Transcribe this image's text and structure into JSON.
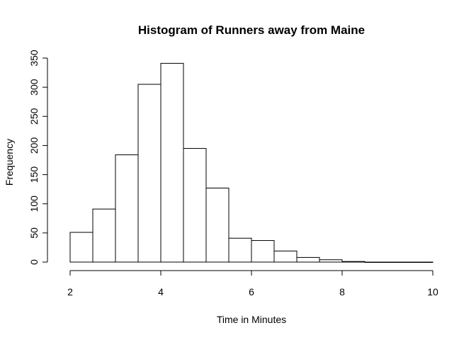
{
  "chart_data": {
    "type": "bar",
    "subtype": "histogram",
    "title": "Histogram of Runners away from Maine",
    "xlabel": "Time in Minutes",
    "ylabel": "Frequency",
    "bins": [
      {
        "x0": 2.0,
        "x1": 2.5,
        "count": 51
      },
      {
        "x0": 2.5,
        "x1": 3.0,
        "count": 91
      },
      {
        "x0": 3.0,
        "x1": 3.5,
        "count": 184
      },
      {
        "x0": 3.5,
        "x1": 4.0,
        "count": 305
      },
      {
        "x0": 4.0,
        "x1": 4.5,
        "count": 341
      },
      {
        "x0": 4.5,
        "x1": 5.0,
        "count": 195
      },
      {
        "x0": 5.0,
        "x1": 5.5,
        "count": 127
      },
      {
        "x0": 5.5,
        "x1": 6.0,
        "count": 41
      },
      {
        "x0": 6.0,
        "x1": 6.5,
        "count": 37
      },
      {
        "x0": 6.5,
        "x1": 7.0,
        "count": 19
      },
      {
        "x0": 7.0,
        "x1": 7.5,
        "count": 8
      },
      {
        "x0": 7.5,
        "x1": 8.0,
        "count": 4
      },
      {
        "x0": 8.0,
        "x1": 8.5,
        "count": 1
      },
      {
        "x0": 8.5,
        "x1": 9.0,
        "count": 0
      },
      {
        "x0": 9.0,
        "x1": 9.5,
        "count": 0
      },
      {
        "x0": 9.5,
        "x1": 10.0,
        "count": 0
      }
    ],
    "xlim": [
      2,
      10
    ],
    "ylim": [
      0,
      350
    ],
    "xticks": [
      "2",
      "4",
      "6",
      "8",
      "10"
    ],
    "yticks": [
      "0",
      "50",
      "100",
      "150",
      "200",
      "250",
      "300",
      "350"
    ],
    "grid": false,
    "bar_fill": "#ffffff",
    "bar_stroke": "#000000"
  }
}
